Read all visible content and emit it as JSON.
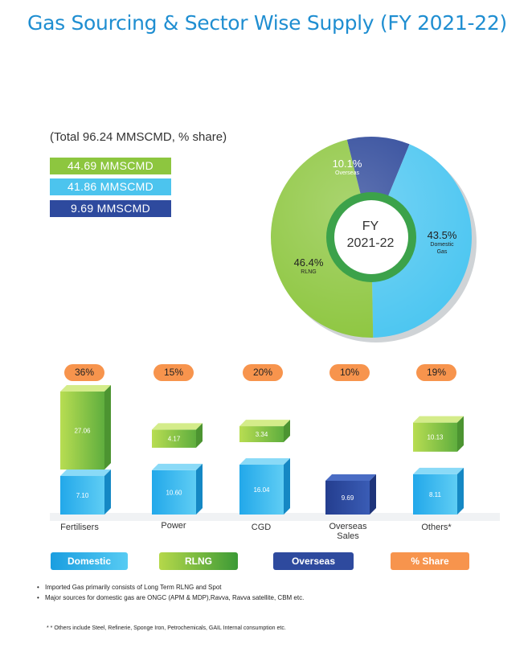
{
  "title": "Gas Sourcing & Sector Wise Supply (FY 2021-22)",
  "total_note": "(Total 96.24 MMSCMD, % share)",
  "volume_chips": [
    {
      "label": "44.69 MMSCMD",
      "color": "#8dc63f"
    },
    {
      "label": "41.86 MMSCMD",
      "color": "#4cc4ee"
    },
    {
      "label": "9.69 MMSCMD",
      "color": "#2e4a9e"
    }
  ],
  "donut": {
    "center_line1": "FY",
    "center_line2": "2021-22",
    "slices": [
      {
        "pct_label": "10.1%",
        "name": "Overseas",
        "value": 10.1,
        "color": "#2a4598"
      },
      {
        "pct_label": "43.5%",
        "name_line1": "Domestic",
        "name_line2": "Gas",
        "value": 43.5,
        "color": "#4cc6f1"
      },
      {
        "pct_label": "46.4%",
        "name": "RLNG",
        "value": 46.4,
        "color": "#8dc63f"
      }
    ]
  },
  "chart_data": {
    "type": "bar",
    "categories": [
      "Fertilisers",
      "Power",
      "CGD",
      "Overseas Sales",
      "Others*"
    ],
    "share_labels": [
      "36%",
      "15%",
      "20%",
      "10%",
      "19%"
    ],
    "series": [
      {
        "name": "Domestic",
        "values": [
          7.1,
          10.6,
          16.04,
          null,
          8.11
        ],
        "labels": [
          "7.10",
          "10.60",
          "16.04",
          "",
          "8.11"
        ]
      },
      {
        "name": "RLNG",
        "values": [
          27.06,
          4.17,
          3.34,
          null,
          10.13
        ],
        "labels": [
          "27.06",
          "4.17",
          "3.34",
          "",
          "10.13"
        ]
      },
      {
        "name": "Overseas",
        "values": [
          null,
          null,
          null,
          9.69,
          null
        ],
        "labels": [
          "",
          "",
          "",
          "9.69",
          ""
        ]
      }
    ]
  },
  "category_labels": {
    "fertilisers": "Fertilisers",
    "power": "Power",
    "cgd": "CGD",
    "overseas_line1": "Overseas",
    "overseas_line2": "Sales",
    "others": "Others*"
  },
  "legend": [
    {
      "label": "Domestic",
      "color": "#1fa9e6"
    },
    {
      "label": "RLNG",
      "color": "#6cbb3c"
    },
    {
      "label": "Overseas",
      "color": "#2e4a9e"
    },
    {
      "label": "% Share",
      "color": "#f7944d"
    }
  ],
  "notes": [
    "Imported Gas primarily consists of Long Term RLNG and Spot",
    "Major sources for domestic gas are ONGC (APM & MDP),Ravva, Ravva satellite, CBM etc."
  ],
  "footnote": "* * Others include Steel, Refinerie, Sponge Iron, Petrochemicals, GAIL Internal consumption etc."
}
